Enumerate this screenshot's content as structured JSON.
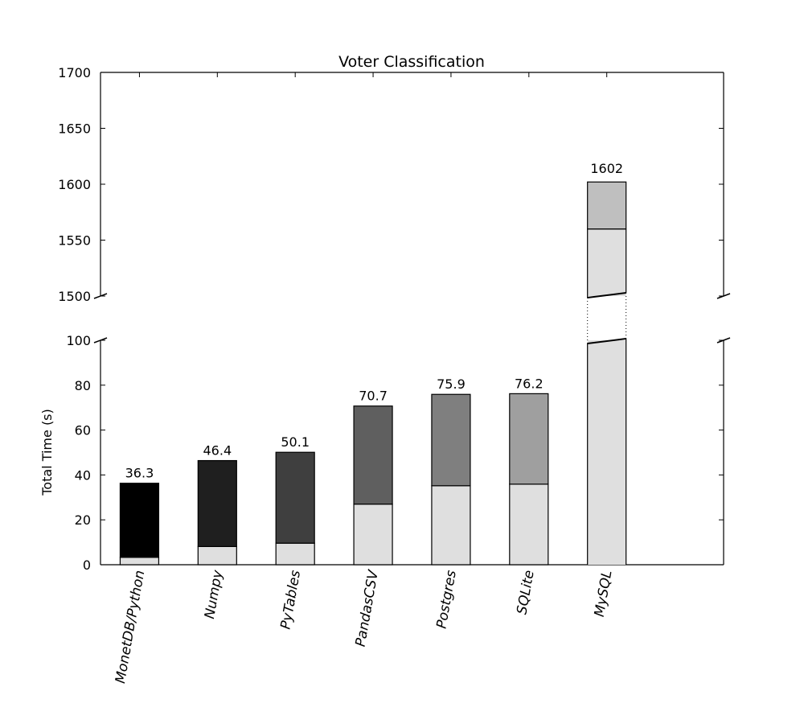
{
  "chart_data": {
    "type": "bar",
    "stacked": true,
    "broken_y_axis": true,
    "title": "Voter Classification",
    "xlabel": "",
    "ylabel": "Total Time (s)",
    "categories": [
      "MonetDB/Python",
      "Numpy",
      "PyTables",
      "PandasCSV",
      "Postgres",
      "SQLite",
      "MySQL"
    ],
    "totals": [
      36.3,
      46.4,
      50.1,
      70.7,
      75.9,
      76.2,
      1602
    ],
    "total_labels": [
      "36.3",
      "46.4",
      "50.1",
      "70.7",
      "75.9",
      "76.2",
      "1602"
    ],
    "series": [
      {
        "values": [
          3.3,
          8.1,
          9.6,
          27.0,
          35.2,
          35.9,
          1560
        ],
        "colors": [
          "#dfdfdf",
          "#dfdfdf",
          "#dfdfdf",
          "#dfdfdf",
          "#dfdfdf",
          "#dfdfdf",
          "#dfdfdf"
        ]
      },
      {
        "values": [
          33.0,
          38.3,
          40.5,
          43.7,
          40.7,
          40.3,
          42
        ],
        "colors": [
          "#000000",
          "#1f1f1f",
          "#3f3f3f",
          "#5f5f5f",
          "#7f7f7f",
          "#9f9f9f",
          "#bfbfbf"
        ]
      }
    ],
    "lower_ylim": [
      0,
      100
    ],
    "upper_ylim": [
      1500,
      1700
    ],
    "lower_yticks": [
      0,
      20,
      40,
      60,
      80,
      100
    ],
    "upper_yticks": [
      1500,
      1550,
      1600,
      1650,
      1700
    ],
    "grid": false,
    "legend": "none"
  }
}
